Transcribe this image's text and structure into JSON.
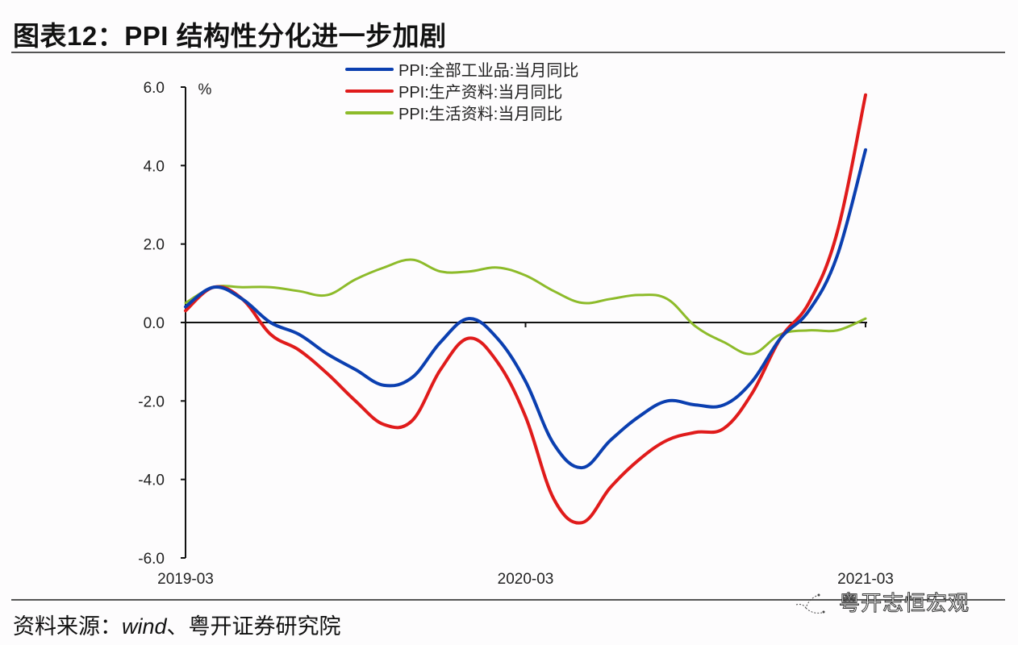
{
  "header": {
    "title": "图表12：PPI 结构性分化进一步加剧"
  },
  "footer": {
    "source_prefix": "资料来源：",
    "source_en": "wind",
    "source_suffix": "、粤开证券研究院",
    "watermark": "粤开志恒宏观",
    "watermark_icon": "wechat-icon"
  },
  "colors": {
    "blue": "#0b3fb0",
    "red": "#e01b1b",
    "green": "#8dbb2a",
    "axis": "#111111"
  },
  "chart_data": {
    "type": "line",
    "title": "PPI 结构性分化进一步加剧",
    "ylabel": "%",
    "xlabel": "",
    "ylim": [
      -6.0,
      6.0
    ],
    "yticks": [
      "6.0",
      "4.0",
      "2.0",
      "0.0",
      "-2.0",
      "-4.0",
      "-6.0"
    ],
    "ytick_values": [
      6,
      4,
      2,
      0,
      -2,
      -4,
      -6
    ],
    "xtick_labels": [
      "2019-03",
      "2020-03",
      "2021-03"
    ],
    "xtick_indices": [
      0,
      12,
      24
    ],
    "grid": false,
    "legend_position": "top-center",
    "x": [
      "2019-03",
      "2019-04",
      "2019-05",
      "2019-06",
      "2019-07",
      "2019-08",
      "2019-09",
      "2019-10",
      "2019-11",
      "2019-12",
      "2020-01",
      "2020-02",
      "2020-03",
      "2020-04",
      "2020-05",
      "2020-06",
      "2020-07",
      "2020-08",
      "2020-09",
      "2020-10",
      "2020-11",
      "2020-12",
      "2021-01",
      "2021-02",
      "2021-03"
    ],
    "series": [
      {
        "name": "PPI:全部工业品:当月同比",
        "color": "#0b3fb0",
        "values": [
          0.4,
          0.9,
          0.6,
          0.0,
          -0.3,
          -0.8,
          -1.2,
          -1.6,
          -1.4,
          -0.5,
          0.1,
          -0.4,
          -1.5,
          -3.1,
          -3.7,
          -3.0,
          -2.4,
          -2.0,
          -2.1,
          -2.1,
          -1.5,
          -0.4,
          0.3,
          1.7,
          4.4
        ]
      },
      {
        "name": "PPI:生产资料:当月同比",
        "color": "#e01b1b",
        "values": [
          0.3,
          0.9,
          0.6,
          -0.3,
          -0.7,
          -1.3,
          -2.0,
          -2.6,
          -2.5,
          -1.2,
          -0.4,
          -1.0,
          -2.4,
          -4.5,
          -5.1,
          -4.2,
          -3.5,
          -3.0,
          -2.8,
          -2.7,
          -1.8,
          -0.4,
          0.5,
          2.3,
          5.8
        ]
      },
      {
        "name": "PPI:生活资料:当月同比",
        "color": "#8dbb2a",
        "values": [
          0.5,
          0.9,
          0.9,
          0.9,
          0.8,
          0.7,
          1.1,
          1.4,
          1.6,
          1.3,
          1.3,
          1.4,
          1.2,
          0.8,
          0.5,
          0.6,
          0.7,
          0.6,
          -0.1,
          -0.5,
          -0.8,
          -0.3,
          -0.2,
          -0.2,
          0.1
        ]
      }
    ]
  }
}
